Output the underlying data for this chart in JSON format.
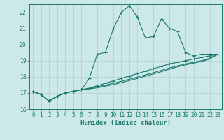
{
  "xlabel": "Humidex (Indice chaleur)",
  "x": [
    0,
    1,
    2,
    3,
    4,
    5,
    6,
    7,
    8,
    9,
    10,
    11,
    12,
    13,
    14,
    15,
    16,
    17,
    18,
    19,
    20,
    21,
    22,
    23
  ],
  "line1": [
    17.1,
    16.9,
    16.5,
    16.8,
    17.0,
    17.1,
    17.2,
    17.9,
    19.4,
    19.5,
    21.0,
    22.0,
    22.4,
    21.7,
    20.4,
    20.5,
    21.6,
    21.0,
    20.8,
    19.5,
    19.3,
    19.4,
    19.4,
    19.4
  ],
  "line2": [
    17.1,
    16.9,
    16.5,
    16.8,
    17.0,
    17.1,
    17.2,
    17.3,
    17.45,
    17.6,
    17.75,
    17.9,
    18.05,
    18.2,
    18.35,
    18.5,
    18.65,
    18.8,
    18.9,
    19.0,
    19.1,
    19.2,
    19.3,
    19.4
  ],
  "line3": [
    17.1,
    16.9,
    16.5,
    16.8,
    17.0,
    17.1,
    17.2,
    17.28,
    17.38,
    17.48,
    17.6,
    17.72,
    17.85,
    17.98,
    18.12,
    18.26,
    18.4,
    18.55,
    18.68,
    18.8,
    18.9,
    19.0,
    19.15,
    19.4
  ],
  "line4": [
    17.1,
    16.9,
    16.5,
    16.8,
    17.0,
    17.1,
    17.2,
    17.25,
    17.32,
    17.42,
    17.52,
    17.64,
    17.77,
    17.9,
    18.04,
    18.18,
    18.32,
    18.48,
    18.62,
    18.74,
    18.85,
    18.95,
    19.1,
    19.4
  ],
  "line_color": "#1a7a6e",
  "bg_color": "#cce8e8",
  "grid_color": "#aed0d0",
  "ylim": [
    16,
    22.5
  ],
  "xlim": [
    -0.5,
    23.5
  ],
  "yticks": [
    16,
    17,
    18,
    19,
    20,
    21,
    22
  ],
  "xticks": [
    0,
    1,
    2,
    3,
    4,
    5,
    6,
    7,
    8,
    9,
    10,
    11,
    12,
    13,
    14,
    15,
    16,
    17,
    18,
    19,
    20,
    21,
    22,
    23
  ],
  "tick_fontsize": 5.5,
  "xlabel_fontsize": 6.5
}
